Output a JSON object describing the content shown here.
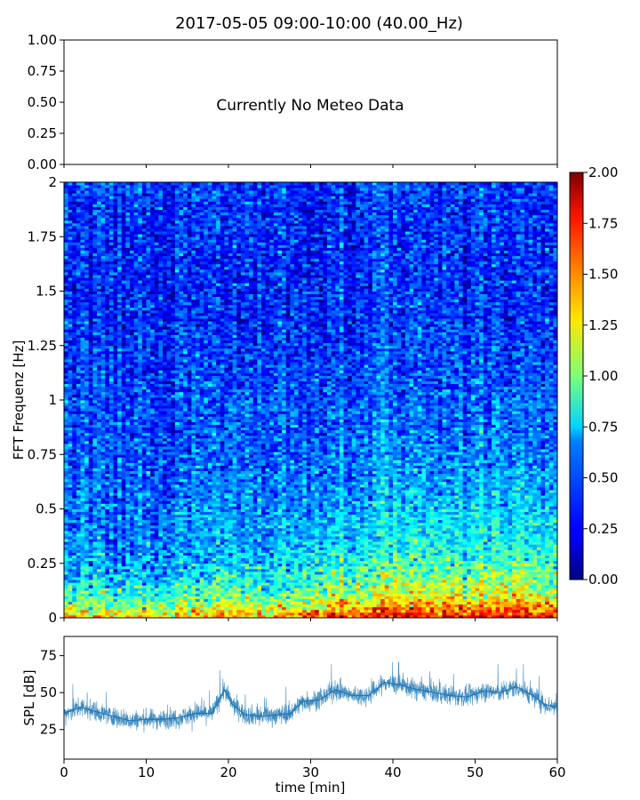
{
  "chart_data": [
    {
      "type": "line",
      "panel": "meteo",
      "title": "2017-05-05 09:00-10:00 (40.00_Hz)",
      "ylim": [
        0,
        1
      ],
      "yticks": [
        "0.00",
        "0.25",
        "0.50",
        "0.75",
        "1.00"
      ],
      "annotation": "Currently No Meteo Data",
      "xlim": [
        0,
        60
      ]
    },
    {
      "type": "heatmap",
      "panel": "spectrogram",
      "ylabel": "FFT Frequenz [Hz]",
      "xlim": [
        0,
        60
      ],
      "ylim": [
        0,
        2
      ],
      "yticks": [
        "0",
        "0.25",
        "0.5",
        "0.75",
        "1",
        "1.25",
        "1.5",
        "1.75",
        "2"
      ],
      "colormap": "jet",
      "colorbar": {
        "range": [
          0,
          2
        ],
        "ticks": [
          "0.00",
          "0.25",
          "0.50",
          "0.75",
          "1.00",
          "1.25",
          "1.50",
          "1.75",
          "2.00"
        ]
      },
      "intensity_profile": {
        "freq_hz": [
          0,
          0.05,
          0.1,
          0.2,
          0.3,
          0.5,
          0.75,
          1.0,
          1.5,
          2.0
        ],
        "level_start": [
          1.3,
          1.0,
          0.8,
          0.6,
          0.5,
          0.45,
          0.4,
          0.38,
          0.3,
          0.35
        ],
        "level_end": [
          1.9,
          1.6,
          1.3,
          1.1,
          0.9,
          0.7,
          0.55,
          0.45,
          0.35,
          0.35
        ]
      }
    },
    {
      "type": "line",
      "panel": "spl",
      "ylabel": "SPL [dB]",
      "xlabel": "time [min]",
      "xlim": [
        0,
        60
      ],
      "ylim": [
        5,
        88
      ],
      "xticks": [
        "0",
        "10",
        "20",
        "30",
        "40",
        "50",
        "60"
      ],
      "yticks": [
        "25",
        "50",
        "75"
      ],
      "color": "#1f77b4",
      "series": [
        {
          "x": [
            0,
            2,
            4,
            6,
            8,
            10,
            12,
            14,
            16,
            18,
            19.5,
            20.5,
            22,
            24,
            26,
            27.5,
            29,
            31,
            33,
            35,
            37,
            39,
            41,
            43,
            45,
            47,
            49,
            51,
            53,
            55,
            57,
            58.5,
            60
          ],
          "y": [
            36,
            40,
            37,
            34,
            31,
            32,
            32,
            33,
            36,
            36,
            52,
            42,
            35,
            34,
            35,
            36,
            44,
            45,
            52,
            48,
            48,
            57,
            55,
            52,
            50,
            48,
            47,
            51,
            50,
            54,
            48,
            42,
            40
          ]
        }
      ]
    }
  ]
}
